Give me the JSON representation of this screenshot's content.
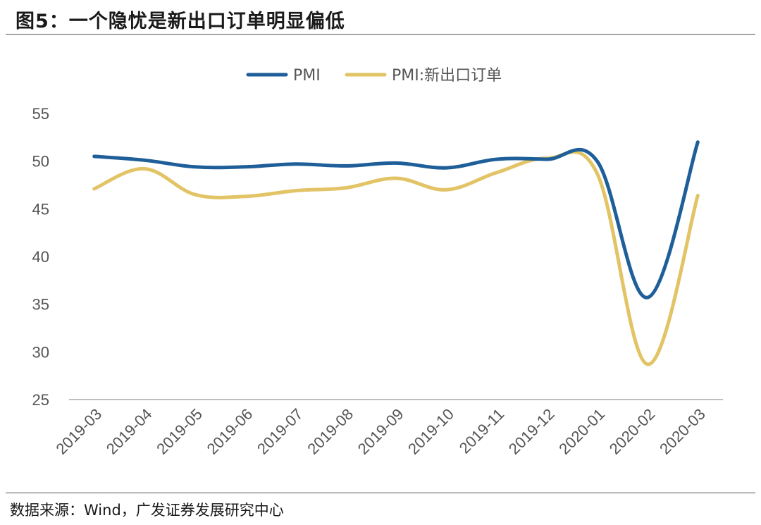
{
  "header": {
    "title": "图5：一个隐忧是新出口订单明显偏低"
  },
  "footer": {
    "source": "数据来源：Wind，广发证券发展研究中心"
  },
  "chart_data": {
    "type": "line",
    "title": "",
    "xlabel": "",
    "ylabel": "",
    "categories": [
      "2019-03",
      "2019-04",
      "2019-05",
      "2019-06",
      "2019-07",
      "2019-08",
      "2019-09",
      "2019-10",
      "2019-11",
      "2019-12",
      "2020-01",
      "2020-02",
      "2020-03"
    ],
    "ylim": [
      25,
      55
    ],
    "yticks": [
      25,
      30,
      35,
      40,
      45,
      50,
      55
    ],
    "grid": false,
    "legend": "top-center",
    "series": [
      {
        "name": "PMI",
        "color": "#1f5f99",
        "values": [
          50.5,
          50.1,
          49.4,
          49.4,
          49.7,
          49.5,
          49.8,
          49.3,
          50.2,
          50.2,
          50.0,
          35.7,
          52.0
        ]
      },
      {
        "name": "PMI:新出口订单",
        "color": "#e2c466",
        "values": [
          47.1,
          49.2,
          46.5,
          46.3,
          46.9,
          47.2,
          48.2,
          47.0,
          48.8,
          50.3,
          48.7,
          28.7,
          46.4
        ]
      }
    ]
  }
}
